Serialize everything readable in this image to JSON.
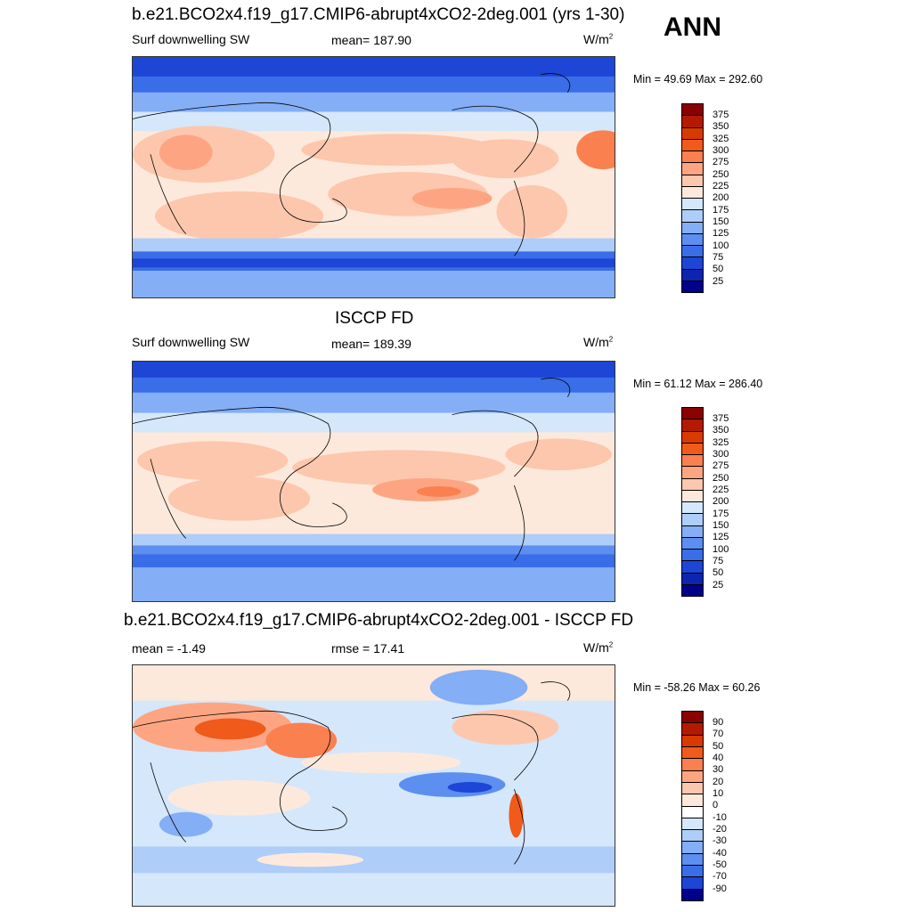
{
  "season": "ANN",
  "panels": [
    {
      "title": "b.e21.BCO2x4.f19_g17.CMIP6-abrupt4xCO2-2deg.001 (yrs 1-30)",
      "left": "Surf downwelling SW",
      "center": "mean= 187.90",
      "units_base": "W/m",
      "units_exp": "2",
      "minmax": "Min =  49.69 Max = 292.60",
      "colorbar": {
        "labels": [
          "375",
          "350",
          "325",
          "300",
          "275",
          "250",
          "225",
          "200",
          "175",
          "150",
          "125",
          "100",
          "75",
          "50",
          "25"
        ],
        "colors": [
          "#8b0000",
          "#b31a00",
          "#d93a00",
          "#f05a1a",
          "#fa8050",
          "#fda583",
          "#fdc7ad",
          "#fde9dc",
          "#d5e7fb",
          "#aecdf8",
          "#84aef5",
          "#5c8ff0",
          "#3a6de8",
          "#1d45d6",
          "#0b25b0",
          "#00008b"
        ]
      },
      "map": {
        "description": "Model annual mean surface downwelling shortwave radiation",
        "value_range": [
          49.69,
          292.6
        ]
      }
    },
    {
      "title": "ISCCP FD",
      "left": "Surf downwelling SW",
      "center": "mean= 189.39",
      "units_base": "W/m",
      "units_exp": "2",
      "minmax": "Min =  61.12 Max = 286.40",
      "colorbar": {
        "labels": [
          "375",
          "350",
          "325",
          "300",
          "275",
          "250",
          "225",
          "200",
          "175",
          "150",
          "125",
          "100",
          "75",
          "50",
          "25"
        ],
        "colors": [
          "#8b0000",
          "#b31a00",
          "#d93a00",
          "#f05a1a",
          "#fa8050",
          "#fda583",
          "#fdc7ad",
          "#fde9dc",
          "#d5e7fb",
          "#aecdf8",
          "#84aef5",
          "#5c8ff0",
          "#3a6de8",
          "#1d45d6",
          "#0b25b0",
          "#00008b"
        ]
      },
      "map": {
        "description": "Observed annual mean surface downwelling shortwave radiation",
        "value_range": [
          61.12,
          286.4
        ]
      }
    },
    {
      "title": "b.e21.BCO2x4.f19_g17.CMIP6-abrupt4xCO2-2deg.001 - ISCCP FD",
      "left": "mean =  -1.49",
      "center": "rmse =  17.41",
      "units_base": "W/m",
      "units_exp": "2",
      "minmax": "Min = -58.26 Max =  60.26",
      "colorbar": {
        "labels": [
          "90",
          "70",
          "50",
          "40",
          "30",
          "20",
          "10",
          "0",
          "-10",
          "-20",
          "-30",
          "-40",
          "-50",
          "-70",
          "-90"
        ],
        "colors": [
          "#8b0000",
          "#b31a00",
          "#d93a00",
          "#f05a1a",
          "#fa8050",
          "#fda583",
          "#fdc7ad",
          "#fde9dc",
          "#ffffff",
          "#d5e7fb",
          "#aecdf8",
          "#84aef5",
          "#5c8ff0",
          "#3a6de8",
          "#1d45d6",
          "#00008b"
        ]
      },
      "map": {
        "description": "Difference model minus observations",
        "value_range": [
          -58.26,
          60.26
        ]
      }
    }
  ]
}
